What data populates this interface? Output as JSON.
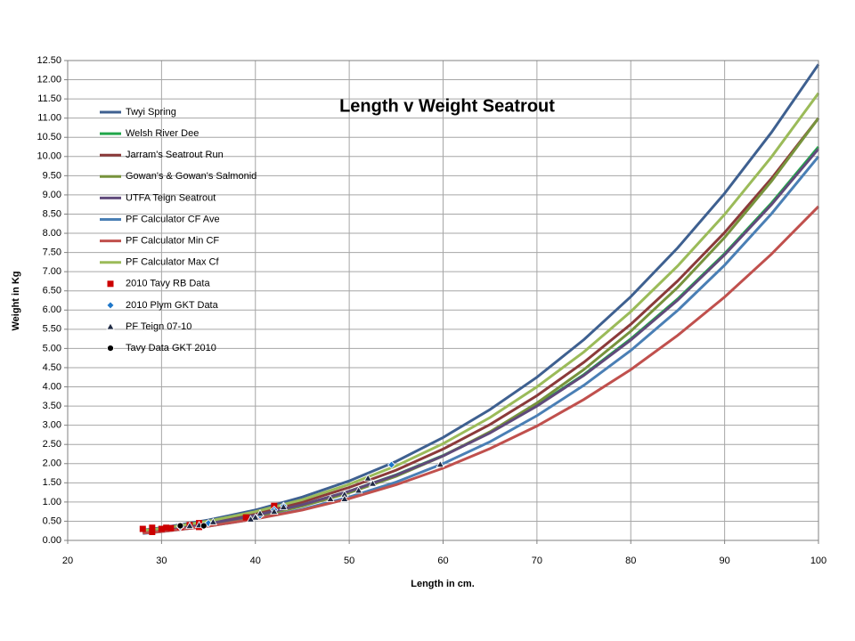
{
  "chart_data": {
    "type": "line",
    "title": "Length v Weight Seatrout",
    "x_label": "Length in cm.",
    "y_label": "Weight in Kg",
    "xlim": [
      20,
      100
    ],
    "ylim": [
      0,
      12.5
    ],
    "xticks": [
      20,
      30,
      40,
      50,
      60,
      70,
      80,
      90,
      100
    ],
    "yticks": [
      {
        "value": 0,
        "label": "0.00"
      },
      {
        "value": 0.5,
        "label": "0.50"
      },
      {
        "value": 1,
        "label": "1.00"
      },
      {
        "value": 1.5,
        "label": "1.50"
      },
      {
        "value": 2,
        "label": "2.00"
      },
      {
        "value": 2.5,
        "label": "2.50"
      },
      {
        "value": 3,
        "label": "3.00"
      },
      {
        "value": 3.5,
        "label": "3.50"
      },
      {
        "value": 4,
        "label": "4.00"
      },
      {
        "value": 4.5,
        "label": "4.50"
      },
      {
        "value": 5,
        "label": "5.00"
      },
      {
        "value": 5.5,
        "label": "5.50"
      },
      {
        "value": 6,
        "label": "6.00"
      },
      {
        "value": 6.5,
        "label": "6.50"
      },
      {
        "value": 7,
        "label": "7.00"
      },
      {
        "value": 7.5,
        "label": "7.50"
      },
      {
        "value": 8,
        "label": "8.00"
      },
      {
        "value": 8.5,
        "label": "8.50"
      },
      {
        "value": 9,
        "label": "9.00"
      },
      {
        "value": 9.5,
        "label": "9.50"
      },
      {
        "value": 10,
        "label": "10.00"
      },
      {
        "value": 10.5,
        "label": "10.50"
      },
      {
        "value": 11,
        "label": "11.00"
      },
      {
        "value": 11.5,
        "label": "11.50"
      },
      {
        "value": 12,
        "label": "12.00"
      },
      {
        "value": 12.5,
        "label": "12.50"
      }
    ],
    "grid": true,
    "legend": "top-left",
    "series": [
      {
        "name": "Twyi Spring",
        "color": "#3e6090",
        "mode": "line",
        "x": [
          28,
          30,
          35,
          40,
          45,
          50,
          55,
          60,
          65,
          70,
          75,
          80,
          85,
          90,
          95,
          100
        ],
        "values": [
          0.27,
          0.33,
          0.53,
          0.79,
          1.13,
          1.55,
          2.06,
          2.68,
          3.41,
          4.25,
          5.23,
          6.35,
          7.62,
          9.04,
          10.63,
          12.4
        ]
      },
      {
        "name": "Welsh River Dee",
        "color": "#21a64a",
        "mode": "line",
        "x": [
          28,
          30,
          35,
          40,
          45,
          50,
          55,
          60,
          65,
          70,
          75,
          80,
          85,
          90,
          95,
          100
        ],
        "values": [
          0.23,
          0.28,
          0.44,
          0.66,
          0.93,
          1.28,
          1.71,
          2.21,
          2.81,
          3.52,
          4.32,
          5.25,
          6.29,
          7.47,
          8.79,
          10.25
        ]
      },
      {
        "name": "Jarram's Seatrout Run",
        "color": "#8b3a3a",
        "mode": "line",
        "x": [
          28,
          30,
          35,
          40,
          45,
          50,
          55,
          60,
          65,
          70,
          75,
          80,
          85,
          90,
          95,
          100
        ],
        "values": [
          0.24,
          0.3,
          0.47,
          0.7,
          1.0,
          1.38,
          1.83,
          2.38,
          3.02,
          3.77,
          4.64,
          5.63,
          6.76,
          8.02,
          9.43,
          11.0
        ]
      },
      {
        "name": "Gowan's & Gowan's Salmonid",
        "color": "#77933c",
        "mode": "line",
        "x": [
          28,
          30,
          35,
          40,
          45,
          50,
          55,
          60,
          65,
          70,
          75,
          80,
          85,
          90,
          95,
          100
        ],
        "values": [
          0.2,
          0.25,
          0.4,
          0.61,
          0.89,
          1.24,
          1.67,
          2.2,
          2.83,
          3.58,
          4.45,
          5.45,
          6.59,
          7.89,
          9.36,
          11.0
        ]
      },
      {
        "name": "UTFA Teign Seatrout",
        "color": "#604a7b",
        "mode": "line",
        "x": [
          28,
          30,
          35,
          40,
          45,
          50,
          55,
          60,
          65,
          70,
          75,
          80,
          85,
          90,
          95,
          100
        ],
        "values": [
          0.22,
          0.28,
          0.44,
          0.65,
          0.93,
          1.28,
          1.7,
          2.2,
          2.8,
          3.5,
          4.3,
          5.22,
          6.26,
          7.44,
          8.75,
          10.2
        ]
      },
      {
        "name": "PF Calculator  CF Ave",
        "color": "#4a7fb5",
        "mode": "line",
        "x": [
          28,
          30,
          35,
          40,
          45,
          50,
          55,
          60,
          65,
          70,
          75,
          80,
          85,
          90,
          95,
          100
        ],
        "values": [
          0.18,
          0.23,
          0.37,
          0.56,
          0.81,
          1.13,
          1.52,
          2.0,
          2.57,
          3.25,
          4.04,
          4.95,
          5.99,
          7.17,
          8.51,
          10.0
        ]
      },
      {
        "name": "PF Calculator  Min CF",
        "color": "#c0504d",
        "mode": "line",
        "x": [
          28,
          30,
          35,
          40,
          45,
          50,
          55,
          60,
          65,
          70,
          75,
          80,
          85,
          90,
          95,
          100
        ],
        "values": [
          0.19,
          0.23,
          0.37,
          0.56,
          0.79,
          1.09,
          1.45,
          1.88,
          2.39,
          2.98,
          3.67,
          4.45,
          5.34,
          6.34,
          7.46,
          8.7
        ]
      },
      {
        "name": "PF Calculator  Max Cf",
        "color": "#9bbb59",
        "mode": "line",
        "x": [
          28,
          30,
          35,
          40,
          45,
          50,
          55,
          60,
          65,
          70,
          75,
          80,
          85,
          90,
          95,
          100
        ],
        "values": [
          0.26,
          0.31,
          0.5,
          0.75,
          1.06,
          1.46,
          1.94,
          2.52,
          3.2,
          4.0,
          4.91,
          5.96,
          7.15,
          8.49,
          9.99,
          11.65
        ]
      },
      {
        "name": "2010 Tavy RB Data",
        "color": "#cc0000",
        "mode": "markers",
        "marker": "square",
        "x": [
          28,
          29,
          29,
          30,
          30.5,
          31,
          32,
          33,
          34,
          34,
          39,
          42
        ],
        "values": [
          0.3,
          0.22,
          0.33,
          0.3,
          0.33,
          0.32,
          0.35,
          0.4,
          0.45,
          0.35,
          0.6,
          0.9
        ]
      },
      {
        "name": "2010 Plym GKT Data",
        "color": "#1f77c9",
        "mode": "markers",
        "marker": "diamond",
        "x": [
          54.5,
          43,
          42,
          40.5,
          35,
          32
        ],
        "values": [
          1.97,
          0.9,
          0.8,
          0.65,
          0.45,
          0.35
        ]
      },
      {
        "name": "PF Teign 07-10",
        "color": "#1f2a44",
        "mode": "markers",
        "marker": "triangle",
        "x": [
          59.7,
          52,
          52.5,
          51,
          49.5,
          49.5,
          48,
          43,
          42,
          40.5,
          40,
          39.5,
          35.5,
          34,
          33
        ],
        "values": [
          1.98,
          1.62,
          1.48,
          1.3,
          1.2,
          1.08,
          1.08,
          0.87,
          0.75,
          0.7,
          0.6,
          0.55,
          0.48,
          0.4,
          0.38
        ]
      },
      {
        "name": "Tavy Data GKT 2010",
        "color": "#000000",
        "mode": "markers",
        "marker": "circle",
        "x": [
          32,
          34.5
        ],
        "values": [
          0.38,
          0.38
        ]
      }
    ]
  }
}
